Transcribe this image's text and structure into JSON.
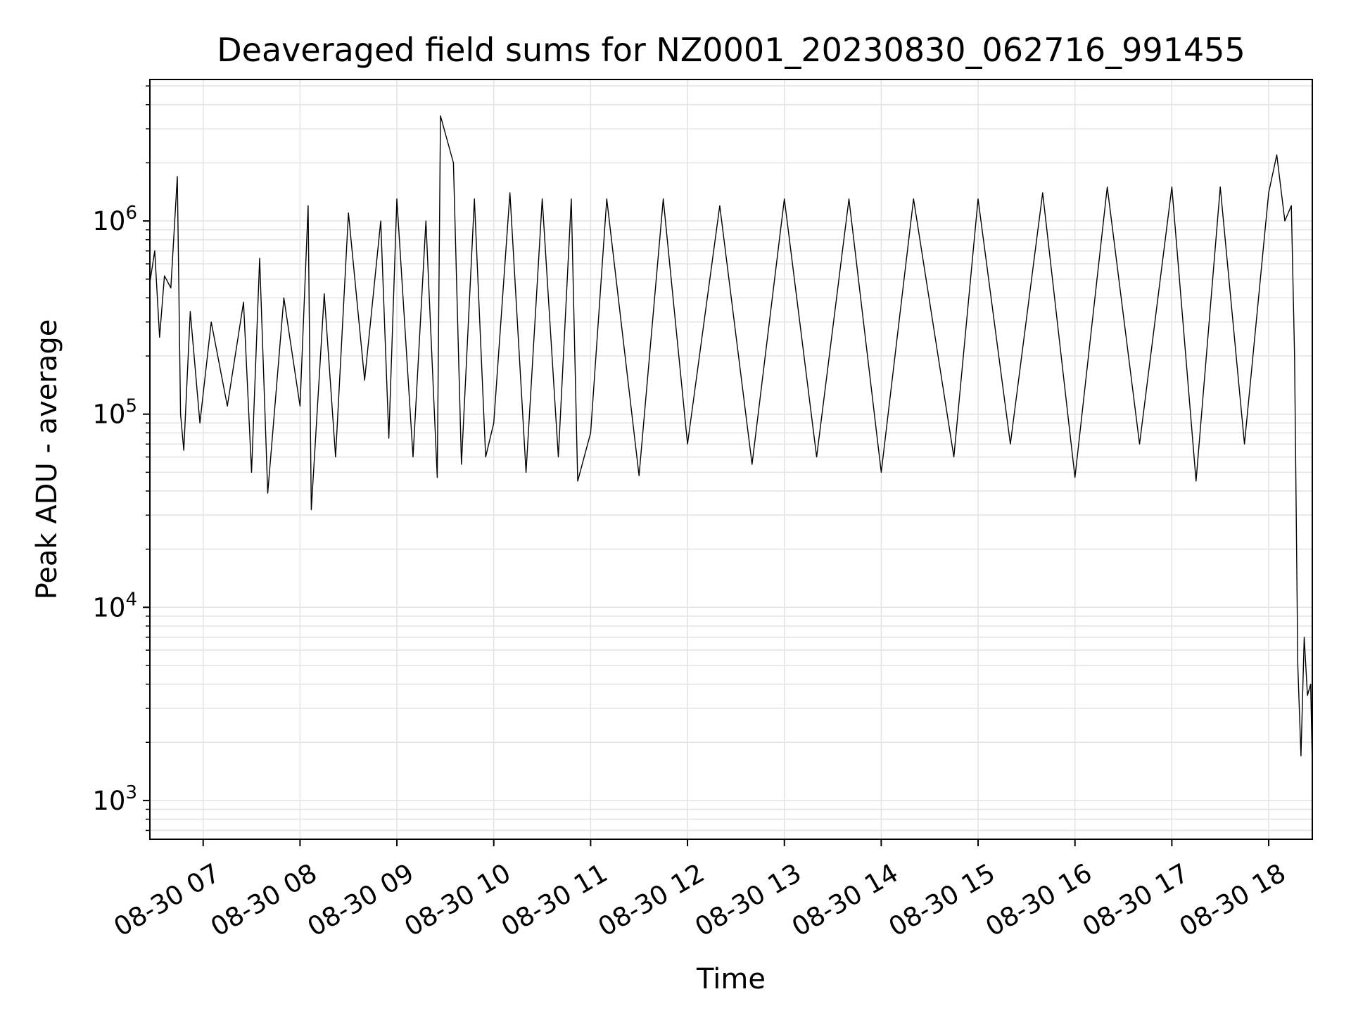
{
  "chart_data": {
    "type": "line",
    "title": "Deaveraged field sums for NZ0001_20230830_062716_991455",
    "xlabel": "Time",
    "ylabel": "Peak ADU - average",
    "yscale": "log",
    "ylim": [
      630,
      5400000
    ],
    "xlim": [
      "2023-08-30 06:27",
      "2023-08-30 18:27"
    ],
    "grid": true,
    "line_color": "#000000",
    "grid_color": "#e3e3e3",
    "x_ticks": [
      "08-30 07",
      "08-30 08",
      "08-30 09",
      "08-30 10",
      "08-30 11",
      "08-30 12",
      "08-30 13",
      "08-30 14",
      "08-30 15",
      "08-30 16",
      "08-30 17",
      "08-30 18"
    ],
    "y_ticks": [
      {
        "value": 1000,
        "base": "10",
        "exp": "3"
      },
      {
        "value": 10000,
        "base": "10",
        "exp": "4"
      },
      {
        "value": 100000,
        "base": "10",
        "exp": "5"
      },
      {
        "value": 1000000,
        "base": "10",
        "exp": "6"
      }
    ],
    "series": [
      {
        "points": [
          [
            "2023-08-30 06:27",
            480000
          ],
          [
            "2023-08-30 06:30",
            700000
          ],
          [
            "2023-08-30 06:33",
            250000
          ],
          [
            "2023-08-30 06:36",
            520000
          ],
          [
            "2023-08-30 06:40",
            450000
          ],
          [
            "2023-08-30 06:44",
            1700000
          ],
          [
            "2023-08-30 06:46",
            100000
          ],
          [
            "2023-08-30 06:48",
            65000
          ],
          [
            "2023-08-30 06:52",
            340000
          ],
          [
            "2023-08-30 06:58",
            90000
          ],
          [
            "2023-08-30 07:05",
            300000
          ],
          [
            "2023-08-30 07:15",
            110000
          ],
          [
            "2023-08-30 07:25",
            380000
          ],
          [
            "2023-08-30 07:30",
            50000
          ],
          [
            "2023-08-30 07:35",
            640000
          ],
          [
            "2023-08-30 07:40",
            39000
          ],
          [
            "2023-08-30 07:50",
            400000
          ],
          [
            "2023-08-30 08:00",
            110000
          ],
          [
            "2023-08-30 08:05",
            1200000
          ],
          [
            "2023-08-30 08:07",
            32000
          ],
          [
            "2023-08-30 08:15",
            420000
          ],
          [
            "2023-08-30 08:22",
            60000
          ],
          [
            "2023-08-30 08:30",
            1100000
          ],
          [
            "2023-08-30 08:40",
            150000
          ],
          [
            "2023-08-30 08:50",
            1000000
          ],
          [
            "2023-08-30 08:55",
            75000
          ],
          [
            "2023-08-30 09:00",
            1300000
          ],
          [
            "2023-08-30 09:10",
            60000
          ],
          [
            "2023-08-30 09:18",
            1000000
          ],
          [
            "2023-08-30 09:25",
            47000
          ],
          [
            "2023-08-30 09:27",
            3500000
          ],
          [
            "2023-08-30 09:35",
            2000000
          ],
          [
            "2023-08-30 09:40",
            55000
          ],
          [
            "2023-08-30 09:48",
            1300000
          ],
          [
            "2023-08-30 09:55",
            60000
          ],
          [
            "2023-08-30 10:00",
            90000
          ],
          [
            "2023-08-30 10:10",
            1400000
          ],
          [
            "2023-08-30 10:20",
            50000
          ],
          [
            "2023-08-30 10:30",
            1300000
          ],
          [
            "2023-08-30 10:40",
            60000
          ],
          [
            "2023-08-30 10:48",
            1300000
          ],
          [
            "2023-08-30 10:52",
            45000
          ],
          [
            "2023-08-30 11:00",
            80000
          ],
          [
            "2023-08-30 11:10",
            1300000
          ],
          [
            "2023-08-30 11:30",
            48000
          ],
          [
            "2023-08-30 11:45",
            1300000
          ],
          [
            "2023-08-30 12:00",
            70000
          ],
          [
            "2023-08-30 12:20",
            1200000
          ],
          [
            "2023-08-30 12:40",
            55000
          ],
          [
            "2023-08-30 13:00",
            1300000
          ],
          [
            "2023-08-30 13:20",
            60000
          ],
          [
            "2023-08-30 13:40",
            1300000
          ],
          [
            "2023-08-30 14:00",
            50000
          ],
          [
            "2023-08-30 14:20",
            1300000
          ],
          [
            "2023-08-30 14:45",
            60000
          ],
          [
            "2023-08-30 15:00",
            1300000
          ],
          [
            "2023-08-30 15:20",
            70000
          ],
          [
            "2023-08-30 15:40",
            1400000
          ],
          [
            "2023-08-30 16:00",
            47000
          ],
          [
            "2023-08-30 16:20",
            1500000
          ],
          [
            "2023-08-30 16:40",
            70000
          ],
          [
            "2023-08-30 17:00",
            1500000
          ],
          [
            "2023-08-30 17:15",
            45000
          ],
          [
            "2023-08-30 17:30",
            1500000
          ],
          [
            "2023-08-30 17:45",
            70000
          ],
          [
            "2023-08-30 18:00",
            1400000
          ],
          [
            "2023-08-30 18:05",
            2200000
          ],
          [
            "2023-08-30 18:10",
            1000000
          ],
          [
            "2023-08-30 18:14",
            1200000
          ],
          [
            "2023-08-30 18:16",
            200000
          ],
          [
            "2023-08-30 18:18",
            5000
          ],
          [
            "2023-08-30 18:20",
            1700
          ],
          [
            "2023-08-30 18:22",
            7000
          ],
          [
            "2023-08-30 18:24",
            3500
          ],
          [
            "2023-08-30 18:26",
            4000
          ],
          [
            "2023-08-30 18:27",
            1500
          ]
        ]
      }
    ]
  }
}
